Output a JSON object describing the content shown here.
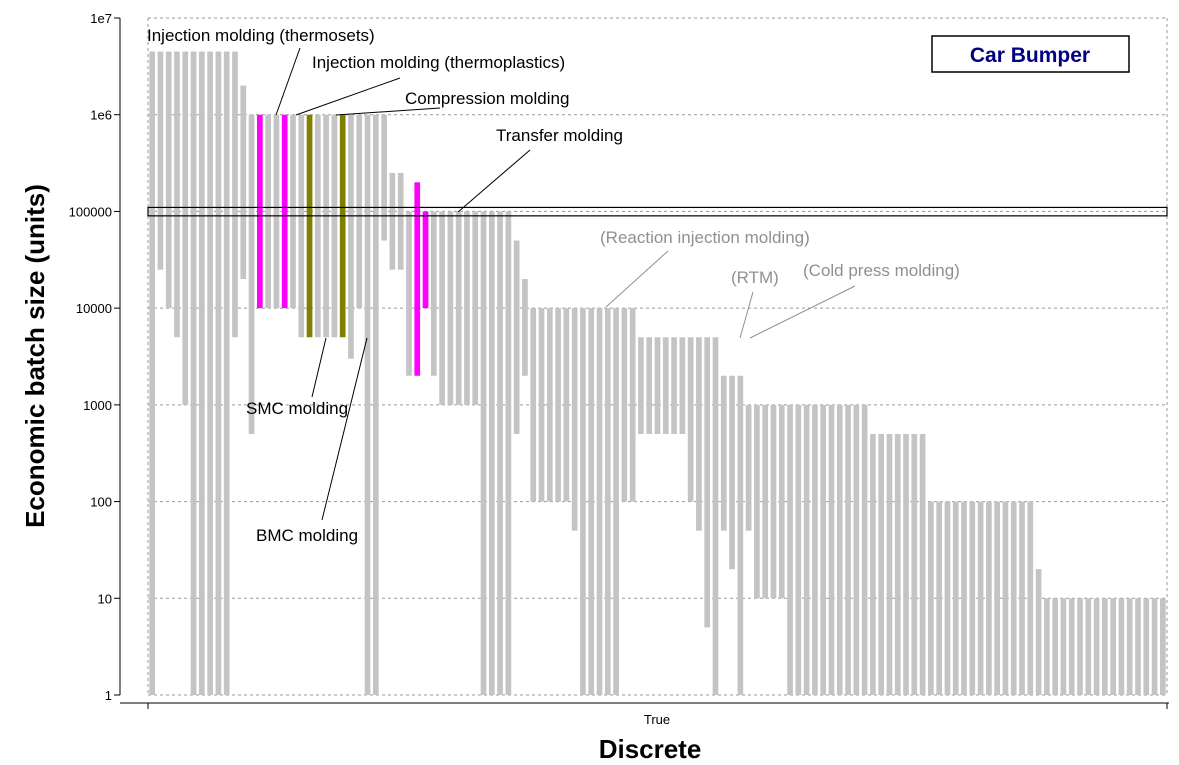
{
  "chart_data": {
    "type": "bar",
    "title": "Car Bumper",
    "xlabel": "Discrete",
    "ylabel": "Economic batch size (units)",
    "y_scale": "log",
    "ylim": [
      1,
      10000000
    ],
    "yticks": [
      "1",
      "10",
      "100",
      "1000",
      "10000",
      "100000",
      "1e6",
      "1e7"
    ],
    "xticks": [
      "True"
    ],
    "grid": true,
    "selection_band": [
      90000,
      110000
    ],
    "colors": {
      "default": "#c4c4c4",
      "highlight_magenta": "#ff00ff",
      "highlight_olive": "#808000",
      "annotation_text_black": "#000000",
      "annotation_text_grey": "#909090",
      "badge_text": "#000080"
    },
    "ranges": [
      {
        "min": 1,
        "max": 4500000
      },
      {
        "min": 25000,
        "max": 4500000
      },
      {
        "min": 10000,
        "max": 4500000
      },
      {
        "min": 5000,
        "max": 4500000
      },
      {
        "min": 1000,
        "max": 4500000
      },
      {
        "min": 1,
        "max": 4500000
      },
      {
        "min": 1,
        "max": 4500000
      },
      {
        "min": 1,
        "max": 4500000
      },
      {
        "min": 1,
        "max": 4500000
      },
      {
        "min": 1,
        "max": 4500000
      },
      {
        "min": 5000,
        "max": 4500000
      },
      {
        "min": 20000,
        "max": 2000000
      },
      {
        "min": 500,
        "max": 1000000
      },
      {
        "name": "Injection molding (thermosets)",
        "min": 10000,
        "max": 1000000,
        "highlight": "magenta"
      },
      {
        "min": 10000,
        "max": 1000000
      },
      {
        "min": 10000,
        "max": 1000000
      },
      {
        "name": "Injection molding (thermoplastics)",
        "min": 10000,
        "max": 1000000,
        "highlight": "magenta"
      },
      {
        "min": 10000,
        "max": 1000000
      },
      {
        "min": 5000,
        "max": 1000000
      },
      {
        "name": "SMC molding",
        "min": 5000,
        "max": 1000000,
        "highlight": "olive"
      },
      {
        "min": 5000,
        "max": 1000000
      },
      {
        "min": 5000,
        "max": 1000000
      },
      {
        "min": 5000,
        "max": 1000000
      },
      {
        "name": "BMC molding",
        "min": 5000,
        "max": 1000000,
        "highlight": "olive"
      },
      {
        "min": 3000,
        "max": 1000000
      },
      {
        "min": 10000,
        "max": 1000000
      },
      {
        "min": 1,
        "max": 1000000
      },
      {
        "min": 1,
        "max": 1000000
      },
      {
        "min": 50000,
        "max": 1000000
      },
      {
        "min": 25000,
        "max": 250000
      },
      {
        "min": 25000,
        "max": 250000
      },
      {
        "min": 2000,
        "max": 100000
      },
      {
        "name": "Transfer molding",
        "min": 2000,
        "max": 200000,
        "highlight": "magenta"
      },
      {
        "min": 10000,
        "max": 100000,
        "highlight": "magenta"
      },
      {
        "min": 2000,
        "max": 100000
      },
      {
        "min": 1000,
        "max": 100000
      },
      {
        "min": 1000,
        "max": 100000
      },
      {
        "min": 1000,
        "max": 100000
      },
      {
        "min": 1000,
        "max": 100000
      },
      {
        "min": 1000,
        "max": 100000
      },
      {
        "min": 1,
        "max": 100000
      },
      {
        "min": 1,
        "max": 100000
      },
      {
        "min": 1,
        "max": 100000
      },
      {
        "min": 1,
        "max": 100000
      },
      {
        "min": 500,
        "max": 50000
      },
      {
        "min": 2000,
        "max": 20000
      },
      {
        "min": 100,
        "max": 10000
      },
      {
        "min": 100,
        "max": 10000
      },
      {
        "name": "(Reaction injection molding)",
        "min": 100,
        "max": 10000
      },
      {
        "min": 100,
        "max": 10000
      },
      {
        "min": 100,
        "max": 10000
      },
      {
        "min": 50,
        "max": 10000
      },
      {
        "min": 1,
        "max": 10000
      },
      {
        "min": 1,
        "max": 10000
      },
      {
        "min": 1,
        "max": 10000
      },
      {
        "min": 1,
        "max": 10000
      },
      {
        "min": 1,
        "max": 10000
      },
      {
        "min": 100,
        "max": 10000
      },
      {
        "min": 100,
        "max": 10000
      },
      {
        "min": 500,
        "max": 5000
      },
      {
        "min": 500,
        "max": 5000
      },
      {
        "min": 500,
        "max": 5000
      },
      {
        "min": 500,
        "max": 5000
      },
      {
        "name": "(RTM)",
        "min": 500,
        "max": 5000
      },
      {
        "name": "(Cold press molding)",
        "min": 500,
        "max": 5000
      },
      {
        "min": 100,
        "max": 5000
      },
      {
        "min": 50,
        "max": 5000
      },
      {
        "min": 5,
        "max": 5000
      },
      {
        "min": 1,
        "max": 5000
      },
      {
        "min": 50,
        "max": 2000
      },
      {
        "min": 20,
        "max": 2000
      },
      {
        "min": 1,
        "max": 2000
      },
      {
        "min": 50,
        "max": 1000
      },
      {
        "min": 10,
        "max": 1000
      },
      {
        "min": 10,
        "max": 1000
      },
      {
        "min": 10,
        "max": 1000
      },
      {
        "min": 10,
        "max": 1000
      },
      {
        "min": 1,
        "max": 1000
      },
      {
        "min": 1,
        "max": 1000
      },
      {
        "min": 1,
        "max": 1000
      },
      {
        "min": 1,
        "max": 1000
      },
      {
        "min": 1,
        "max": 1000
      },
      {
        "min": 1,
        "max": 1000
      },
      {
        "min": 1,
        "max": 1000
      },
      {
        "min": 1,
        "max": 1000
      },
      {
        "min": 1,
        "max": 1000
      },
      {
        "min": 1,
        "max": 1000
      },
      {
        "min": 1,
        "max": 500
      },
      {
        "min": 1,
        "max": 500
      },
      {
        "min": 1,
        "max": 500
      },
      {
        "min": 1,
        "max": 500
      },
      {
        "min": 1,
        "max": 500
      },
      {
        "min": 1,
        "max": 500
      },
      {
        "min": 1,
        "max": 500
      },
      {
        "min": 1,
        "max": 100
      },
      {
        "min": 1,
        "max": 100
      },
      {
        "min": 1,
        "max": 100
      },
      {
        "min": 1,
        "max": 100
      },
      {
        "min": 1,
        "max": 100
      },
      {
        "min": 1,
        "max": 100
      },
      {
        "min": 1,
        "max": 100
      },
      {
        "min": 1,
        "max": 100
      },
      {
        "min": 1,
        "max": 100
      },
      {
        "min": 1,
        "max": 100
      },
      {
        "min": 1,
        "max": 100
      },
      {
        "min": 1,
        "max": 100
      },
      {
        "min": 1,
        "max": 100
      },
      {
        "min": 1,
        "max": 20
      },
      {
        "min": 1,
        "max": 10
      },
      {
        "min": 1,
        "max": 10
      },
      {
        "min": 1,
        "max": 10
      },
      {
        "min": 1,
        "max": 10
      },
      {
        "min": 1,
        "max": 10
      },
      {
        "min": 1,
        "max": 10
      },
      {
        "min": 1,
        "max": 10
      },
      {
        "min": 1,
        "max": 10
      },
      {
        "min": 1,
        "max": 10
      },
      {
        "min": 1,
        "max": 10
      },
      {
        "min": 1,
        "max": 10
      },
      {
        "min": 1,
        "max": 10
      },
      {
        "min": 1,
        "max": 10
      },
      {
        "min": 1,
        "max": 10
      },
      {
        "min": 1,
        "max": 10
      }
    ],
    "annotations": [
      {
        "text": "Injection molding (thermosets)",
        "style": "black"
      },
      {
        "text": "Injection molding (thermoplastics)",
        "style": "black"
      },
      {
        "text": "Compression molding",
        "style": "black"
      },
      {
        "text": "Transfer molding",
        "style": "black"
      },
      {
        "text": "SMC molding",
        "style": "black"
      },
      {
        "text": "BMC molding",
        "style": "black"
      },
      {
        "text": "(Reaction injection molding)",
        "style": "grey"
      },
      {
        "text": "(RTM)",
        "style": "grey"
      },
      {
        "text": "(Cold press molding)",
        "style": "grey"
      }
    ]
  }
}
